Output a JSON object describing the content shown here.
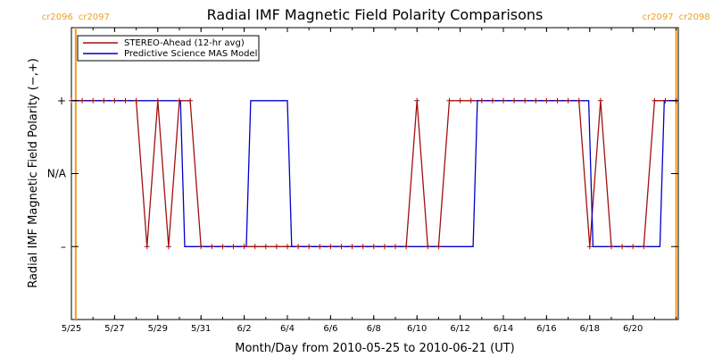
{
  "chart_data": {
    "type": "line",
    "title": "Radial IMF Magnetic Field Polarity Comparisons",
    "xlabel": "Month/Day from 2010-05-25 to 2010-06-21 (UT)",
    "ylabel": "Radial IMF Magnetic Field Polarity (−,+)",
    "x_units": "day of May 2010 (UT); values above 31 continue into June (day − 31)",
    "xlim": [
      25,
      53.1
    ],
    "ylim": [
      -2,
      2
    ],
    "x_ticks": [
      {
        "x": 25,
        "label": "5/25"
      },
      {
        "x": 27,
        "label": "5/27"
      },
      {
        "x": 29,
        "label": "5/29"
      },
      {
        "x": 31,
        "label": "5/31"
      },
      {
        "x": 33,
        "label": "6/2"
      },
      {
        "x": 35,
        "label": "6/4"
      },
      {
        "x": 37,
        "label": "6/6"
      },
      {
        "x": 39,
        "label": "6/8"
      },
      {
        "x": 41,
        "label": "6/10"
      },
      {
        "x": 43,
        "label": "6/12"
      },
      {
        "x": 45,
        "label": "6/14"
      },
      {
        "x": 47,
        "label": "6/16"
      },
      {
        "x": 49,
        "label": "6/18"
      },
      {
        "x": 51,
        "label": "6/20"
      }
    ],
    "y_ticks": [
      {
        "y": 1,
        "label": "+"
      },
      {
        "y": 0,
        "label": "N/A"
      },
      {
        "y": -1,
        "label": "–"
      }
    ],
    "carrington_markers": [
      {
        "x": 25.2,
        "left_label": "cr2096",
        "right_label": "cr2097",
        "color": "#f0a020"
      },
      {
        "x": 53.0,
        "left_label": "cr2097",
        "right_label": "cr2098",
        "color": "#f0a020"
      }
    ],
    "legend_position": "top-left",
    "series": [
      {
        "name": "STEREO-Ahead (12-hr avg)",
        "color": "#a01010",
        "marker": "plus",
        "x": [
          25.0,
          25.5,
          26.0,
          26.5,
          27.0,
          27.5,
          28.0,
          28.5,
          29.0,
          29.5,
          30.0,
          30.5,
          31.0,
          31.5,
          32.0,
          32.5,
          33.0,
          33.5,
          34.0,
          34.5,
          35.0,
          35.5,
          36.0,
          36.5,
          37.0,
          37.5,
          38.0,
          38.5,
          39.0,
          39.5,
          40.0,
          40.5,
          41.0,
          41.5,
          42.0,
          42.5,
          43.0,
          43.5,
          44.0,
          44.5,
          45.0,
          45.5,
          46.0,
          46.5,
          47.0,
          47.5,
          48.0,
          48.5,
          49.0,
          49.5,
          50.0,
          50.5,
          51.0,
          51.5,
          52.0,
          52.5,
          53.0
        ],
        "y": [
          1,
          1,
          1,
          1,
          1,
          1,
          1,
          -1,
          1,
          -1,
          1,
          1,
          -1,
          -1,
          -1,
          -1,
          -1,
          -1,
          -1,
          -1,
          -1,
          -1,
          -1,
          -1,
          -1,
          -1,
          -1,
          -1,
          -1,
          -1,
          -1,
          -1,
          1,
          -1,
          -1,
          1,
          1,
          1,
          1,
          1,
          1,
          1,
          1,
          1,
          1,
          1,
          1,
          1,
          -1,
          1,
          -1,
          -1,
          -1,
          -1,
          1,
          1,
          1
        ],
        "plus_markers": [
          25.0,
          25.5,
          26.0,
          26.5,
          27.0,
          27.5,
          28.0,
          28.5,
          29.0,
          29.5,
          30.0,
          30.5,
          31.0,
          31.5,
          32.0,
          32.5,
          33.0,
          33.5,
          34.0,
          34.5,
          35.0,
          35.5,
          36.0,
          36.5,
          37.0,
          37.5,
          38.0,
          38.5,
          39.0,
          39.5,
          40.0,
          40.5,
          41.0,
          41.5,
          42.0,
          42.5,
          43.0,
          43.5,
          44.0,
          44.5,
          45.0,
          45.5,
          46.0,
          46.5,
          47.0,
          47.5,
          48.0,
          48.5,
          49.0,
          49.5,
          50.0,
          50.5,
          51.0,
          51.5,
          52.0,
          52.5,
          53.0
        ]
      },
      {
        "name": "Predictive Science MAS Model",
        "color": "#0000cc",
        "marker": "none",
        "x": [
          25.0,
          30.05,
          30.25,
          33.1,
          33.3,
          35.0,
          35.2,
          43.6,
          43.8,
          48.95,
          49.15,
          52.25,
          52.45,
          53.1
        ],
        "y": [
          1,
          1,
          -1,
          -1,
          1,
          1,
          -1,
          -1,
          1,
          1,
          -1,
          -1,
          1,
          1
        ]
      }
    ]
  }
}
